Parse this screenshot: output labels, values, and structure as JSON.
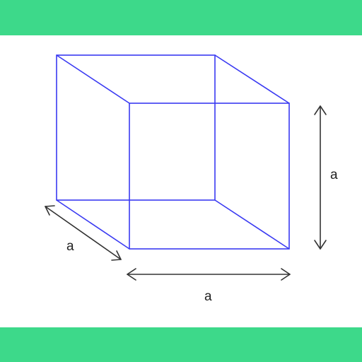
{
  "colors": {
    "band": "#3dd98a",
    "edge": "#3a3af2",
    "arrow": "#333333",
    "background": "#ffffff"
  },
  "dimensions": {
    "depth_label": "a",
    "width_label": "a",
    "height_label": "a"
  }
}
